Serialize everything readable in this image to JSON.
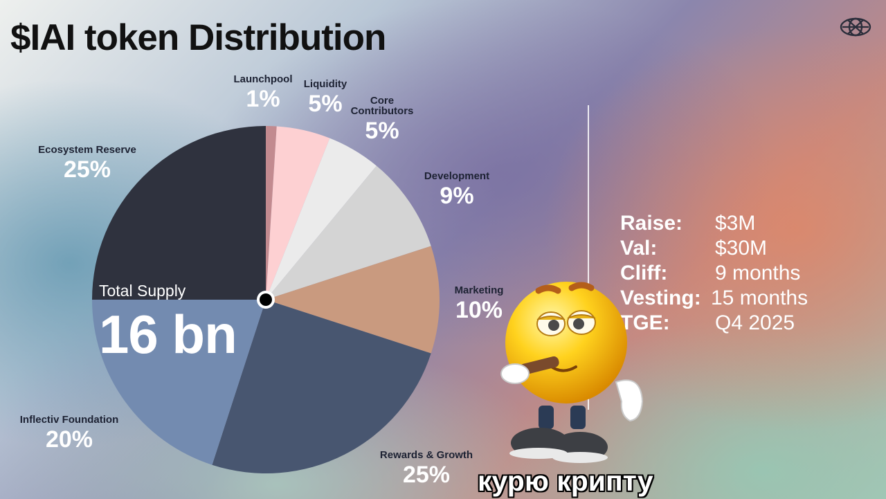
{
  "slide": {
    "title": "$IAI token Distribution",
    "total_supply_label": "Total Supply",
    "total_supply_value": "16 bn",
    "caption": "курю крипту",
    "logo_icon": "geometric-sphere-icon",
    "sticker_icon": "smoking-emoji-sticker"
  },
  "stats": [
    {
      "key": "Raise:",
      "value": "$3M"
    },
    {
      "key": "Val:",
      "value": "$30M"
    },
    {
      "key": "Cliff:",
      "value": "9 months"
    },
    {
      "key": "Vesting:",
      "value": "15 months"
    },
    {
      "key": "TGE:",
      "value": "Q4 2025"
    }
  ],
  "chart_data": {
    "type": "pie",
    "title": "$IAI token Distribution",
    "slices": [
      {
        "label": "Launchpool",
        "value": 1,
        "pct_label": "1%",
        "color": "#c28a8f"
      },
      {
        "label": "Liquidity",
        "value": 5,
        "pct_label": "5%",
        "color": "#fdd0d2"
      },
      {
        "label": "Core Contributors",
        "value": 5,
        "pct_label": "5%",
        "color": "#ebebeb"
      },
      {
        "label": "Development",
        "value": 9,
        "pct_label": "9%",
        "color": "#d4d4d4"
      },
      {
        "label": "Marketing",
        "value": 10,
        "pct_label": "10%",
        "color": "#c99a7f"
      },
      {
        "label": "Rewards & Growth",
        "value": 25,
        "pct_label": "25%",
        "color": "#485670"
      },
      {
        "label": "Inflectiv Foundation",
        "value": 20,
        "pct_label": "20%",
        "color": "#738bb0"
      },
      {
        "label": "Ecosystem Reserve",
        "value": 25,
        "pct_label": "25%",
        "color": "#2f323e"
      }
    ]
  }
}
